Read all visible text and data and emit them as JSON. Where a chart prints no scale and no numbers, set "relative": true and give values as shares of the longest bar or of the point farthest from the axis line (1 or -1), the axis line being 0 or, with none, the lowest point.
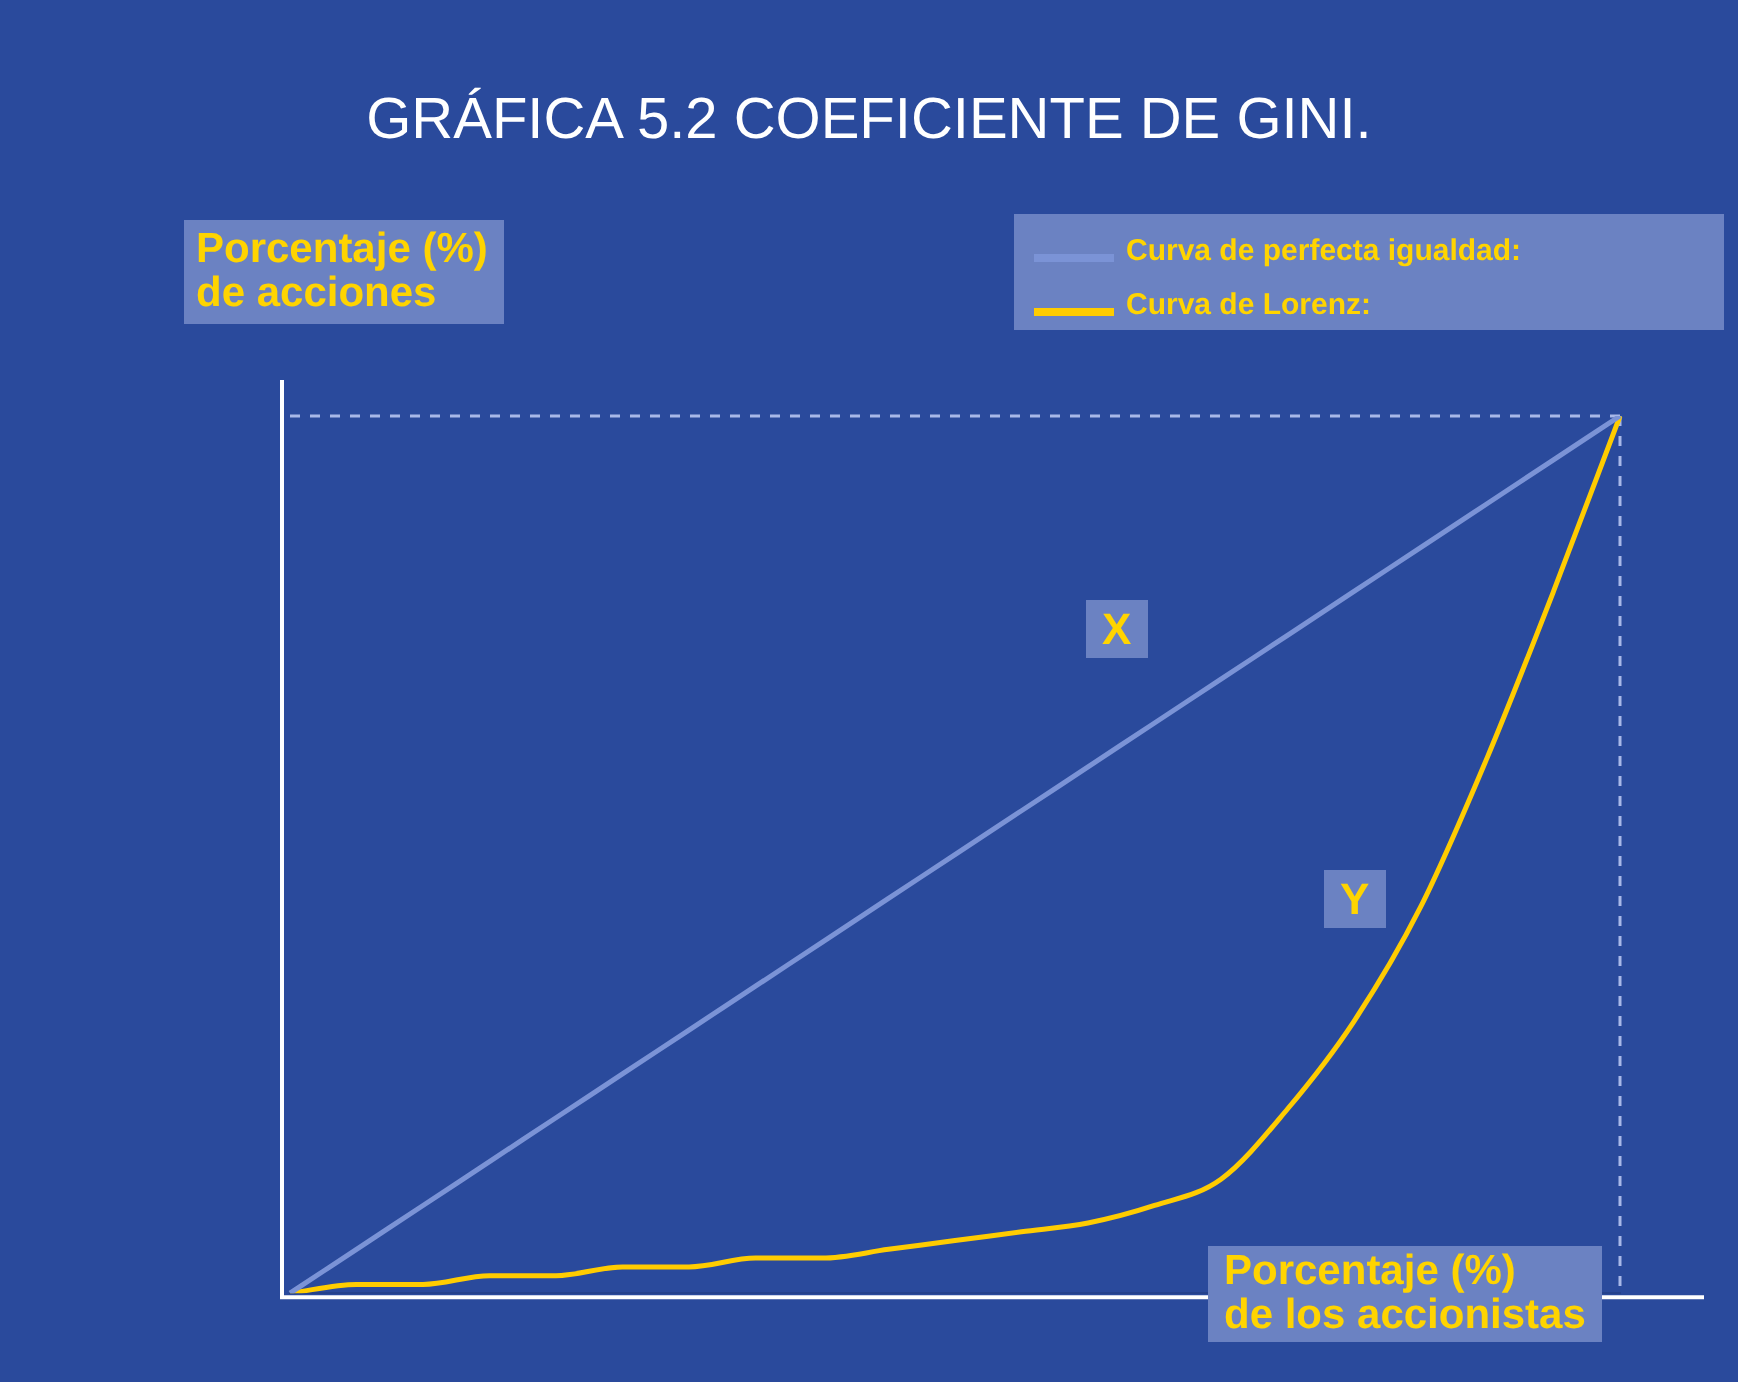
{
  "chart_data": {
    "type": "line",
    "title": "GRÁFICA 5.2 COEFICIENTE DE GINI.",
    "xlabel": "Porcentaje (%)\nde los accionistas",
    "ylabel": "Porcentaje (%)\nde acciones",
    "relative": true,
    "legend": "top right",
    "marker": "none",
    "categories": [
      null,
      null,
      null,
      null,
      null,
      null,
      null,
      null,
      null,
      null,
      null,
      null,
      null,
      null,
      null,
      null,
      null,
      null,
      null,
      null,
      null
    ],
    "series": [
      {
        "name": "Curva de perfecta igualdad:",
        "color": "#7b93d6",
        "values": [
          0,
          0.05,
          0.1,
          0.15,
          0.2,
          0.25,
          0.3,
          0.35,
          0.4,
          0.45,
          0.5,
          0.55,
          0.6,
          0.65,
          0.7,
          0.75,
          0.8,
          0.85,
          0.9,
          0.95,
          1
        ]
      },
      {
        "name": "Curva de Lorenz:",
        "color": "#ffcc00",
        "values": [
          0,
          0.01,
          0.01,
          0.02,
          0.02,
          0.03,
          0.03,
          0.04,
          0.04,
          0.05,
          0.06,
          0.07,
          0.08,
          0.1,
          0.13,
          0.21,
          0.31,
          0.44,
          0.61,
          0.8,
          1
        ]
      }
    ],
    "ref_lines": [
      {
        "axis": "y",
        "value": 1,
        "line_style": "dashed",
        "color": "#a8b8e8"
      }
    ],
    "annotations": [
      "X",
      "Y"
    ]
  }
}
